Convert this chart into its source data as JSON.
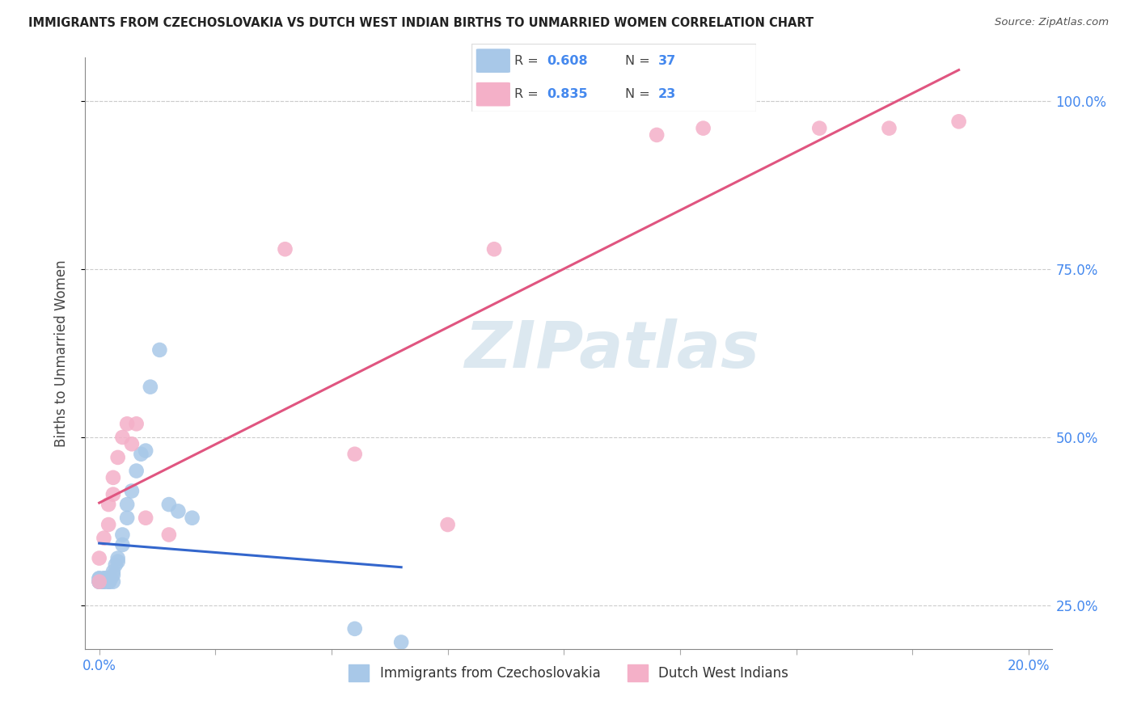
{
  "title": "IMMIGRANTS FROM CZECHOSLOVAKIA VS DUTCH WEST INDIAN BIRTHS TO UNMARRIED WOMEN CORRELATION CHART",
  "source": "Source: ZipAtlas.com",
  "xlabel_blue": "Immigrants from Czechoslovakia",
  "xlabel_pink": "Dutch West Indians",
  "ylabel": "Births to Unmarried Women",
  "legend_blue_r": "0.608",
  "legend_blue_n": "37",
  "legend_pink_r": "0.835",
  "legend_pink_n": "23",
  "blue_color": "#a8c8e8",
  "pink_color": "#f4b0c8",
  "blue_line_color": "#3366cc",
  "pink_line_color": "#e05580",
  "watermark_text": "ZIPatlas",
  "watermark_color": "#dce8f0",
  "xlim": [
    -0.003,
    0.205
  ],
  "ylim": [
    0.185,
    1.065
  ],
  "yticks": [
    0.25,
    0.5,
    0.75,
    1.0
  ],
  "xticks": [
    0.0,
    0.025,
    0.05,
    0.075,
    0.1,
    0.125,
    0.15,
    0.175,
    0.2
  ],
  "blue_x": [
    0.0,
    0.0,
    0.0,
    0.0,
    0.0,
    0.0008,
    0.001,
    0.001,
    0.001,
    0.001,
    0.0015,
    0.002,
    0.002,
    0.002,
    0.0022,
    0.0025,
    0.003,
    0.003,
    0.003,
    0.0035,
    0.004,
    0.004,
    0.005,
    0.005,
    0.006,
    0.006,
    0.007,
    0.008,
    0.009,
    0.01,
    0.011,
    0.013,
    0.015,
    0.017,
    0.02,
    0.055,
    0.065
  ],
  "blue_y": [
    0.285,
    0.285,
    0.29,
    0.285,
    0.29,
    0.285,
    0.285,
    0.29,
    0.285,
    0.29,
    0.29,
    0.285,
    0.285,
    0.29,
    0.285,
    0.29,
    0.285,
    0.295,
    0.3,
    0.31,
    0.315,
    0.32,
    0.34,
    0.355,
    0.38,
    0.4,
    0.42,
    0.45,
    0.475,
    0.48,
    0.575,
    0.63,
    0.4,
    0.39,
    0.38,
    0.215,
    0.195
  ],
  "pink_x": [
    0.0,
    0.0,
    0.001,
    0.002,
    0.002,
    0.003,
    0.003,
    0.004,
    0.005,
    0.006,
    0.007,
    0.008,
    0.01,
    0.015,
    0.04,
    0.055,
    0.075,
    0.085,
    0.12,
    0.13,
    0.155,
    0.17,
    0.185
  ],
  "pink_y": [
    0.285,
    0.32,
    0.35,
    0.37,
    0.4,
    0.415,
    0.44,
    0.47,
    0.5,
    0.52,
    0.49,
    0.52,
    0.38,
    0.355,
    0.78,
    0.475,
    0.37,
    0.78,
    0.95,
    0.96,
    0.96,
    0.96,
    0.97
  ]
}
